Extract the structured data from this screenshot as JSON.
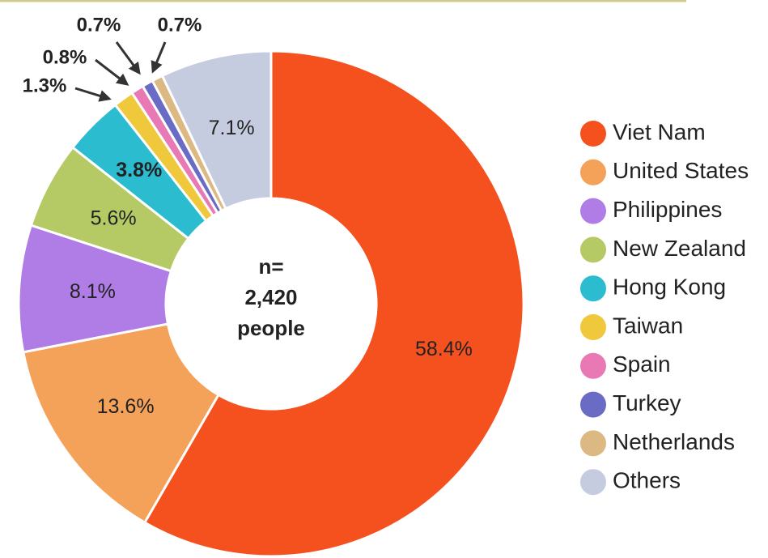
{
  "chart_data": {
    "type": "donut",
    "categories": [
      "Viet Nam",
      "United States",
      "Philippines",
      "New Zealand",
      "Hong Kong",
      "Taiwan",
      "Spain",
      "Turkey",
      "Netherlands",
      "Others"
    ],
    "values": [
      58.4,
      13.6,
      8.1,
      5.6,
      3.8,
      1.3,
      0.8,
      0.7,
      0.7,
      7.1
    ],
    "value_labels": [
      "58.4%",
      "13.6%",
      "8.1%",
      "5.6%",
      "3.8%",
      "1.3%",
      "0.8%",
      "0.7%",
      "0.7%",
      "7.1%"
    ],
    "colors": [
      "#f4511e",
      "#f4a259",
      "#b07ce6",
      "#b5c965",
      "#2bbdcf",
      "#f0c83c",
      "#e879b5",
      "#6a6bc4",
      "#dcb883",
      "#c6cce0"
    ],
    "center_label": [
      "n=",
      "2,420",
      "people"
    ],
    "legend": "right"
  }
}
